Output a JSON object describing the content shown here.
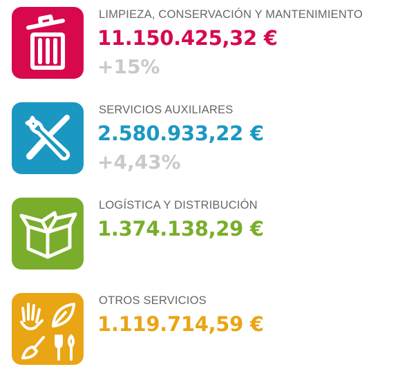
{
  "items": [
    {
      "label": "LIMPIEZA, CONSERVACIÓN Y MANTENIMIENTO",
      "amount": "11.150.425,32 €",
      "change": "+15%"
    },
    {
      "label": "SERVICIOS AUXILIARES",
      "amount": "2.580.933,22 €",
      "change": "+4,43%"
    },
    {
      "label": "LOGÍSTICA Y DISTRIBUCIÓN",
      "amount": "1.374.138,29 €"
    },
    {
      "label": "OTROS SERVICIOS",
      "amount": "1.119.714,59 €"
    }
  ]
}
